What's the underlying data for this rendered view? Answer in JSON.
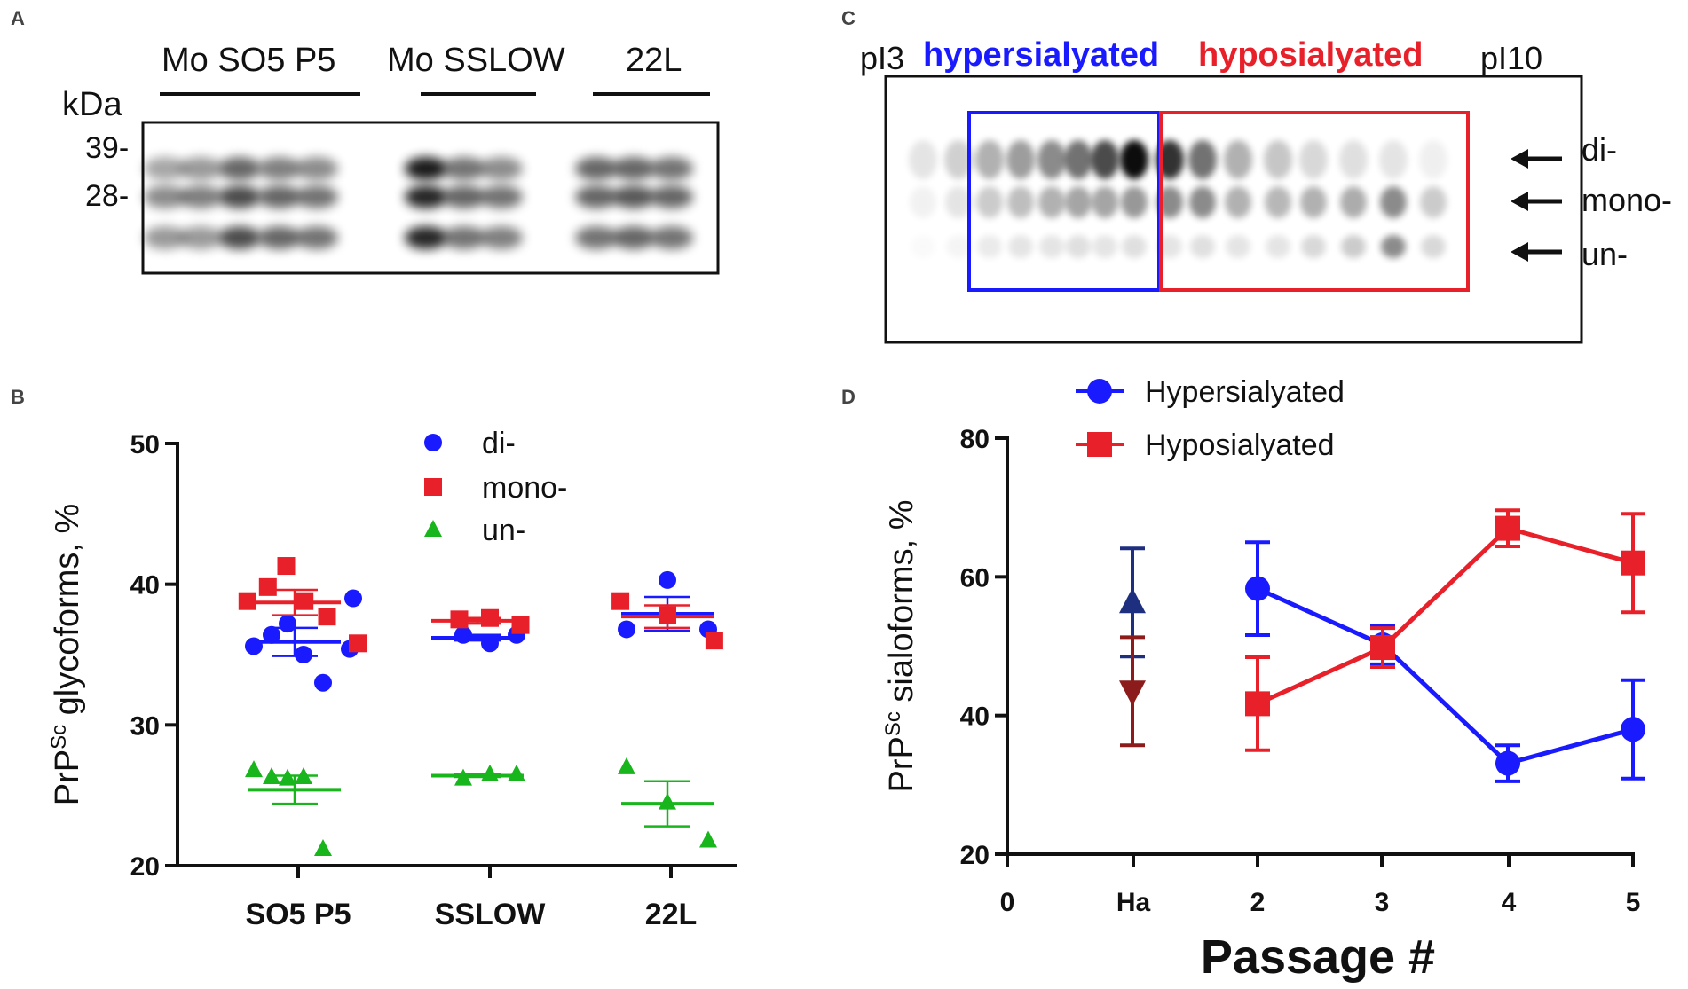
{
  "panels": {
    "A": {
      "label": "A",
      "kda": "kDa",
      "markers": [
        "39-",
        "28-"
      ],
      "groups": [
        "Mo SO5 P5",
        "Mo  SSLOW",
        "22L"
      ]
    },
    "C": {
      "label": "C",
      "pi_left": "pI3",
      "pi_right": "pI10",
      "hyper_label": "hypersialyated",
      "hypo_label": "hyposialyated",
      "arrows": [
        "di-",
        "mono-",
        "un-"
      ],
      "colors": {
        "hyper": "#1a1aff",
        "hypo": "#e8202a"
      }
    },
    "B": {
      "label": "B"
    },
    "D": {
      "label": "D"
    }
  },
  "chart_data": [
    {
      "panel": "B",
      "type": "scatter",
      "ylabel_main": "PrP",
      "ylabel_sup": "Sc",
      "ylabel_rest": " glycoforms, %",
      "ylim": [
        20,
        50
      ],
      "yticks": [
        20,
        30,
        40,
        50
      ],
      "categories": [
        "SO5 P5",
        "SSLOW",
        "22L"
      ],
      "series": [
        {
          "name": "di-",
          "color": "#1a1aff",
          "marker": "circle",
          "points": [
            [
              0,
              35.6
            ],
            [
              0,
              36.4
            ],
            [
              0,
              37.2
            ],
            [
              0,
              35.0
            ],
            [
              0,
              33.0
            ],
            [
              0,
              35.4
            ],
            [
              0,
              39.0
            ],
            [
              1,
              36.4
            ],
            [
              1,
              35.8
            ],
            [
              1,
              36.4
            ],
            [
              2,
              36.8
            ],
            [
              2,
              40.3
            ],
            [
              2,
              36.8
            ]
          ],
          "means": [
            35.9,
            36.2,
            37.9
          ],
          "sem": [
            1.0,
            0.2,
            1.2
          ]
        },
        {
          "name": "mono-",
          "color": "#e8202a",
          "marker": "square",
          "points": [
            [
              0,
              38.8
            ],
            [
              0,
              39.8
            ],
            [
              0,
              41.3
            ],
            [
              0,
              38.8
            ],
            [
              0,
              37.7
            ],
            [
              0,
              35.8
            ],
            [
              1,
              37.5
            ],
            [
              1,
              37.6
            ],
            [
              1,
              37.1
            ],
            [
              2,
              38.8
            ],
            [
              2,
              37.8
            ],
            [
              2,
              36.0
            ]
          ],
          "means": [
            38.7,
            37.4,
            37.7
          ],
          "sem": [
            0.9,
            0.2,
            0.8
          ]
        },
        {
          "name": "un-",
          "color": "#19b51c",
          "marker": "triangle",
          "points": [
            [
              0,
              26.8
            ],
            [
              0,
              26.3
            ],
            [
              0,
              26.2
            ],
            [
              0,
              26.3
            ],
            [
              0,
              21.2
            ],
            [
              1,
              26.2
            ],
            [
              1,
              26.5
            ],
            [
              1,
              26.5
            ],
            [
              2,
              27.0
            ],
            [
              2,
              24.5
            ],
            [
              2,
              21.8
            ]
          ],
          "means": [
            25.4,
            26.4,
            24.4
          ],
          "sem": [
            1.0,
            0.1,
            1.6
          ]
        }
      ]
    },
    {
      "panel": "D",
      "type": "line",
      "ylabel_main": "PrP",
      "ylabel_sup": "Sc",
      "ylabel_rest": " sialoforms, %",
      "xlabel": "Passage #",
      "ylim": [
        20,
        80
      ],
      "yticks": [
        20,
        40,
        60,
        80
      ],
      "xticks": [
        "0",
        "Ha",
        "2",
        "3",
        "4",
        "5"
      ],
      "series": [
        {
          "name": "Hypersialyated",
          "color": "#1a1aff",
          "marker": "circle",
          "x": [
            2,
            3,
            4,
            5
          ],
          "y": [
            58.3,
            50.2,
            33.1,
            38.0
          ],
          "err": [
            6.7,
            2.8,
            2.6,
            7.1
          ]
        },
        {
          "name": "Hyposialyated",
          "color": "#e8202a",
          "marker": "square",
          "x": [
            2,
            3,
            4,
            5
          ],
          "y": [
            41.7,
            49.8,
            67.0,
            62.0
          ],
          "err": [
            6.7,
            2.8,
            2.6,
            7.1
          ]
        }
      ],
      "hamster": [
        {
          "name": "Ha hypersialyated",
          "color": "#1f2f80",
          "marker": "triangle-up",
          "x": 1,
          "y": 56.3,
          "err": 7.8
        },
        {
          "name": "Ha hyposialyated",
          "color": "#8c1c1c",
          "marker": "triangle-down",
          "x": 1,
          "y": 43.5,
          "err": 7.8
        }
      ]
    }
  ]
}
